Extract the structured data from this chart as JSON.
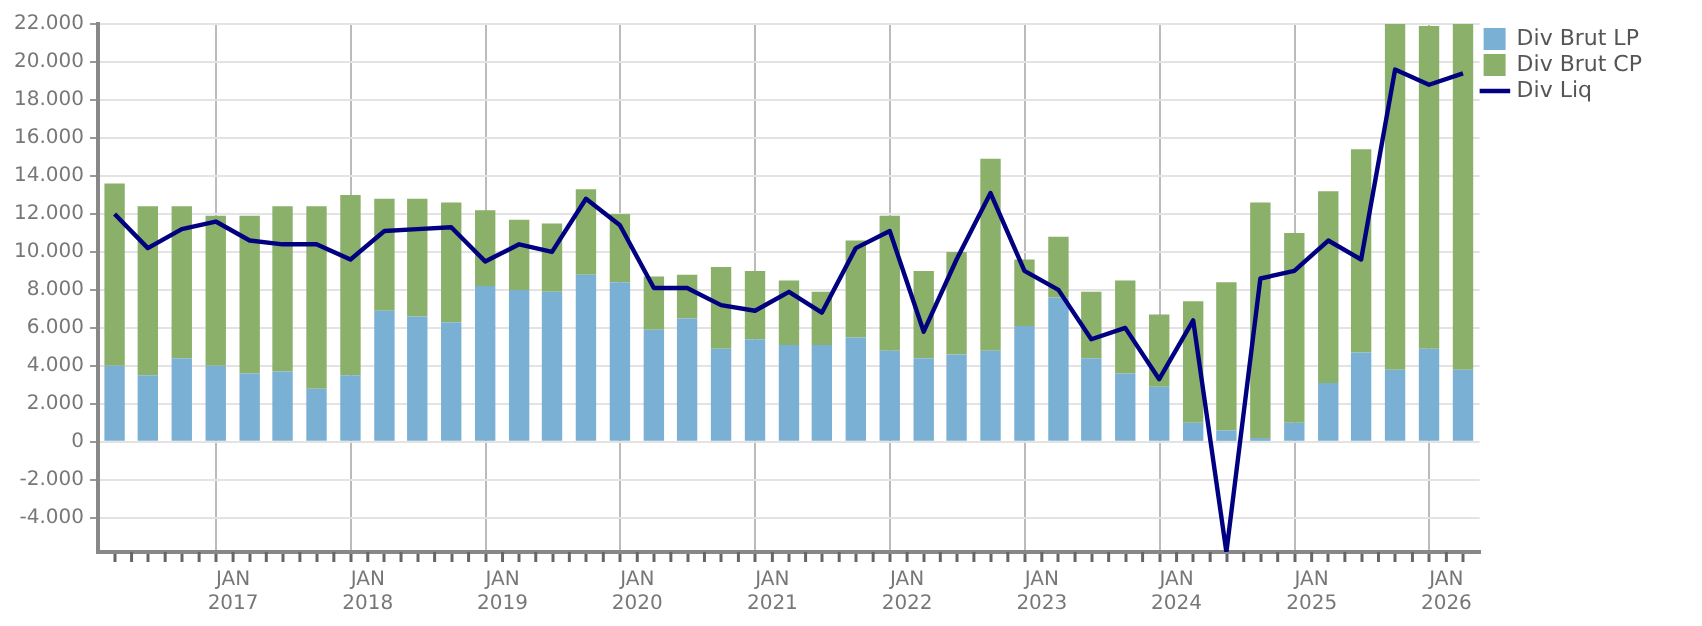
{
  "chart_data": {
    "type": "bar",
    "stacked": true,
    "x": [
      "2016-02-15",
      "2016-05-15",
      "2016-08-15",
      "2016-11-15",
      "2017-02-15",
      "2017-05-15",
      "2017-08-15",
      "2017-11-15",
      "2018-02-15",
      "2018-05-15",
      "2018-08-15",
      "2018-11-15",
      "2019-02-15",
      "2019-05-15",
      "2019-08-15",
      "2019-11-15",
      "2020-02-15",
      "2020-05-15",
      "2020-08-15",
      "2020-11-15",
      "2021-02-15",
      "2021-05-15",
      "2021-08-15",
      "2021-11-15",
      "2022-02-15",
      "2022-05-15",
      "2022-08-15",
      "2022-11-15",
      "2023-02-15",
      "2023-05-15",
      "2023-08-15",
      "2023-11-15",
      "2024-02-15",
      "2024-05-15",
      "2024-08-15",
      "2024-11-15",
      "2025-02-15",
      "2025-05-15",
      "2025-08-15",
      "2025-11-15",
      "2026-02-15"
    ],
    "series": [
      {
        "name": "Div Brut LP",
        "color": "#7ab0d4",
        "values": [
          4000,
          3500,
          4400,
          4000,
          3600,
          3700,
          2800,
          3500,
          6900,
          6600,
          6300,
          8200,
          8000,
          7900,
          8800,
          8400,
          5900,
          6500,
          4900,
          5400,
          5100,
          5100,
          5500,
          4800,
          4400,
          4600,
          4800,
          6100,
          7600,
          4400,
          3600,
          2900,
          1000,
          600,
          200,
          1000,
          3100,
          4700,
          3800,
          4900,
          3800
        ]
      },
      {
        "name": "Div Brut CP",
        "color": "#8ab06a",
        "values": [
          9600,
          8900,
          8000,
          7900,
          8300,
          8700,
          9600,
          9500,
          5900,
          6200,
          6300,
          4000,
          3700,
          3600,
          4500,
          3600,
          2800,
          2300,
          4300,
          3600,
          3400,
          2800,
          5100,
          7100,
          4600,
          5400,
          10100,
          3500,
          3200,
          3500,
          4900,
          3800,
          6400,
          7800,
          12400,
          10000,
          10100,
          10700,
          18200,
          17000,
          18200
        ]
      },
      {
        "name": "Div Liq",
        "type": "line",
        "color": "#000080",
        "values": [
          12000,
          10200,
          11200,
          11600,
          10600,
          10400,
          10400,
          9600,
          11100,
          11200,
          11300,
          9500,
          10400,
          10000,
          12800,
          11400,
          8100,
          8100,
          7200,
          6900,
          7900,
          6800,
          10200,
          11100,
          5800,
          9600,
          13100,
          9000,
          8000,
          5400,
          6000,
          3300,
          6400,
          -5800,
          8600,
          9000,
          10600,
          9600,
          19600,
          18800,
          19400
        ]
      }
    ],
    "xlim": [
      "2016-01",
      "2026-04"
    ],
    "xticks": [
      {
        "value": "2016-04",
        "label": null
      },
      {
        "value": "2016-07",
        "label": null
      },
      {
        "value": "2016-10",
        "label": null
      },
      {
        "value": "2017-01",
        "label": "JAN 2017"
      },
      {
        "value": "2017-04",
        "label": null
      },
      {
        "value": "2017-07",
        "label": null
      },
      {
        "value": "2017-10",
        "label": null
      },
      {
        "value": "2018-01",
        "label": "JAN 2018"
      },
      {
        "value": "2018-04",
        "label": null
      },
      {
        "value": "2018-07",
        "label": null
      },
      {
        "value": "2018-10",
        "label": null
      },
      {
        "value": "2019-01",
        "label": "JAN 2019"
      },
      {
        "value": "2019-04",
        "label": null
      },
      {
        "value": "2019-07",
        "label": null
      },
      {
        "value": "2019-10",
        "label": null
      },
      {
        "value": "2020-01",
        "label": "JAN 2020"
      },
      {
        "value": "2020-04",
        "label": null
      },
      {
        "value": "2020-07",
        "label": null
      },
      {
        "value": "2020-10",
        "label": null
      },
      {
        "value": "2021-01",
        "label": "JAN 2021"
      },
      {
        "value": "2021-04",
        "label": null
      },
      {
        "value": "2021-07",
        "label": null
      },
      {
        "value": "2021-10",
        "label": null
      },
      {
        "value": "2022-01",
        "label": "JAN 2022"
      },
      {
        "value": "2022-04",
        "label": null
      },
      {
        "value": "2022-07",
        "label": null
      },
      {
        "value": "2022-10",
        "label": null
      },
      {
        "value": "2023-01",
        "label": "JAN 2023"
      },
      {
        "value": "2023-04",
        "label": null
      },
      {
        "value": "2023-07",
        "label": null
      },
      {
        "value": "2023-10",
        "label": null
      },
      {
        "value": "2024-01",
        "label": "JAN 2024"
      },
      {
        "value": "2024-04",
        "label": null
      },
      {
        "value": "2024-07",
        "label": null
      },
      {
        "value": "2024-10",
        "label": null
      },
      {
        "value": "2025-01",
        "label": "JAN 2025"
      },
      {
        "value": "2025-04",
        "label": null
      },
      {
        "value": "2025-07",
        "label": null
      },
      {
        "value": "2025-10",
        "label": null
      },
      {
        "value": "2026-01",
        "label": "JAN 2026"
      }
    ],
    "ylim": [
      -5800,
      22000
    ],
    "yticks": [
      {
        "value": -4000,
        "label": "-4.000"
      },
      {
        "value": -2000,
        "label": "-2.000"
      },
      0,
      {
        "value": 2000,
        "label": "2.000"
      },
      {
        "value": 4000,
        "label": "4.000"
      },
      {
        "value": 6000,
        "label": "6.000"
      },
      {
        "value": 8000,
        "label": "8.000"
      },
      {
        "value": 10000,
        "label": "10.000"
      },
      {
        "value": 12000,
        "label": "12.000"
      },
      {
        "value": 14000,
        "label": "14.000"
      },
      {
        "value": 16000,
        "label": "16.000"
      },
      {
        "value": 18000,
        "label": "18.000"
      },
      {
        "value": 20000,
        "label": "20.000"
      },
      {
        "value": 22000,
        "label": "22.000"
      }
    ],
    "grid": true,
    "legend": "top right"
  }
}
